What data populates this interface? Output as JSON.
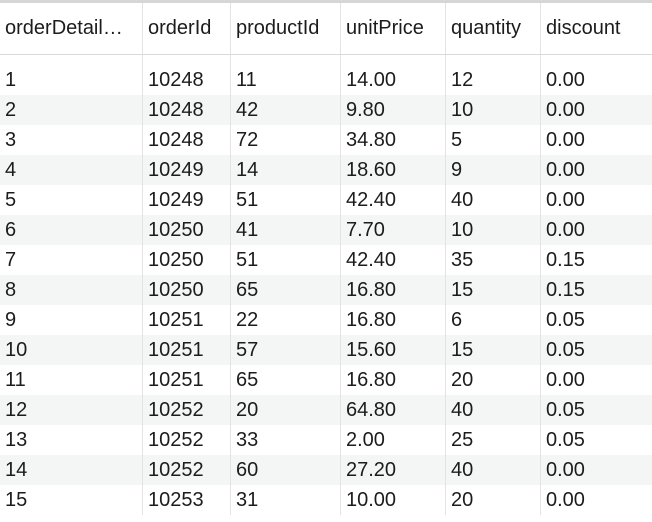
{
  "table": {
    "columns": [
      "orderDetail…",
      "orderId",
      "productId",
      "unitPrice",
      "quantity",
      "discount"
    ],
    "rows": [
      [
        "1",
        "10248",
        "11",
        "14.00",
        "12",
        "0.00"
      ],
      [
        "2",
        "10248",
        "42",
        "9.80",
        "10",
        "0.00"
      ],
      [
        "3",
        "10248",
        "72",
        "34.80",
        "5",
        "0.00"
      ],
      [
        "4",
        "10249",
        "14",
        "18.60",
        "9",
        "0.00"
      ],
      [
        "5",
        "10249",
        "51",
        "42.40",
        "40",
        "0.00"
      ],
      [
        "6",
        "10250",
        "41",
        "7.70",
        "10",
        "0.00"
      ],
      [
        "7",
        "10250",
        "51",
        "42.40",
        "35",
        "0.15"
      ],
      [
        "8",
        "10250",
        "65",
        "16.80",
        "15",
        "0.15"
      ],
      [
        "9",
        "10251",
        "22",
        "16.80",
        "6",
        "0.05"
      ],
      [
        "10",
        "10251",
        "57",
        "15.60",
        "15",
        "0.05"
      ],
      [
        "11",
        "10251",
        "65",
        "16.80",
        "20",
        "0.00"
      ],
      [
        "12",
        "10252",
        "20",
        "64.80",
        "40",
        "0.05"
      ],
      [
        "13",
        "10252",
        "33",
        "2.00",
        "25",
        "0.05"
      ],
      [
        "14",
        "10252",
        "60",
        "27.20",
        "40",
        "0.00"
      ],
      [
        "15",
        "10253",
        "31",
        "10.00",
        "20",
        "0.00"
      ]
    ]
  }
}
